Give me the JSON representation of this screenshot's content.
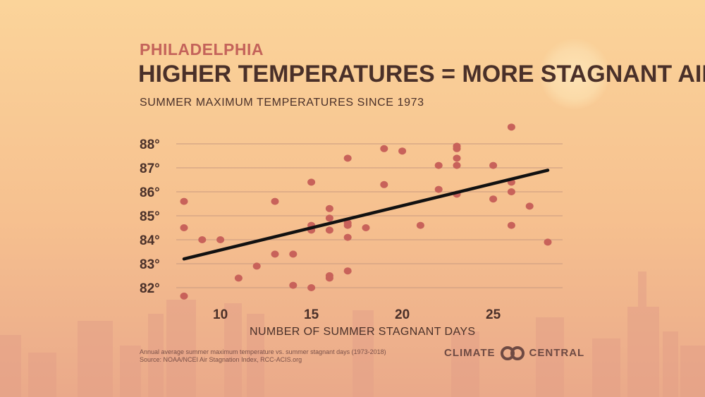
{
  "header": {
    "kicker": "PHILADELPHIA",
    "title": "HIGHER TEMPERATURES = MORE STAGNANT AIR",
    "subtitle": "SUMMER MAXIMUM TEMPERATURES SINCE 1973"
  },
  "footer": {
    "note_line1": "Annual average summer maximum temperature vs. summer stagnant days (1973-2018)",
    "note_line2": "Source: NOAA/NCEI Air Stagnation Index, RCC-ACIS.org",
    "logo_left": "CLIMATE",
    "logo_right": "CENTRAL"
  },
  "colors": {
    "points": "#c8625a",
    "trend": "#111111",
    "grid": "#c99a80",
    "text": "#4a3029",
    "accent": "#c4635a"
  },
  "chart_data": {
    "type": "scatter",
    "title": "HIGHER TEMPERATURES = MORE STAGNANT AIR",
    "subtitle": "SUMMER MAXIMUM TEMPERATURES SINCE 1973",
    "xlabel": "NUMBER OF SUMMER STAGNANT DAYS",
    "ylabel": "",
    "xlim": [
      8,
      28
    ],
    "ylim": [
      81.5,
      88.9
    ],
    "xticks": [
      10,
      15,
      20,
      25
    ],
    "yticks": [
      82,
      83,
      84,
      85,
      86,
      87,
      88
    ],
    "ytick_suffix": "°",
    "grid": "horizontal",
    "points": [
      [
        8,
        85.6
      ],
      [
        8,
        84.5
      ],
      [
        8,
        81.65
      ],
      [
        9,
        84.0
      ],
      [
        10,
        84.0
      ],
      [
        11,
        82.4
      ],
      [
        12,
        82.9
      ],
      [
        13,
        85.6
      ],
      [
        13,
        83.4
      ],
      [
        14,
        83.4
      ],
      [
        14,
        82.1
      ],
      [
        15,
        86.4
      ],
      [
        15,
        84.6
      ],
      [
        15,
        84.4
      ],
      [
        15,
        82.0
      ],
      [
        16,
        85.3
      ],
      [
        16,
        84.9
      ],
      [
        16,
        84.4
      ],
      [
        16,
        82.5
      ],
      [
        16,
        82.4
      ],
      [
        17,
        87.4
      ],
      [
        17,
        84.7
      ],
      [
        17,
        84.6
      ],
      [
        17,
        84.1
      ],
      [
        17,
        82.7
      ],
      [
        18,
        84.5
      ],
      [
        19,
        87.8
      ],
      [
        19,
        86.3
      ],
      [
        20,
        87.7
      ],
      [
        21,
        84.6
      ],
      [
        22,
        87.1
      ],
      [
        22,
        86.1
      ],
      [
        23,
        87.9
      ],
      [
        23,
        87.8
      ],
      [
        23,
        87.4
      ],
      [
        23,
        87.1
      ],
      [
        23,
        85.9
      ],
      [
        25,
        87.1
      ],
      [
        25,
        85.7
      ],
      [
        26,
        88.7
      ],
      [
        26,
        86.4
      ],
      [
        26,
        86.0
      ],
      [
        26,
        84.6
      ],
      [
        27,
        85.4
      ],
      [
        28,
        83.9
      ]
    ],
    "trendline": [
      [
        8,
        83.2
      ],
      [
        28,
        86.9
      ]
    ]
  }
}
